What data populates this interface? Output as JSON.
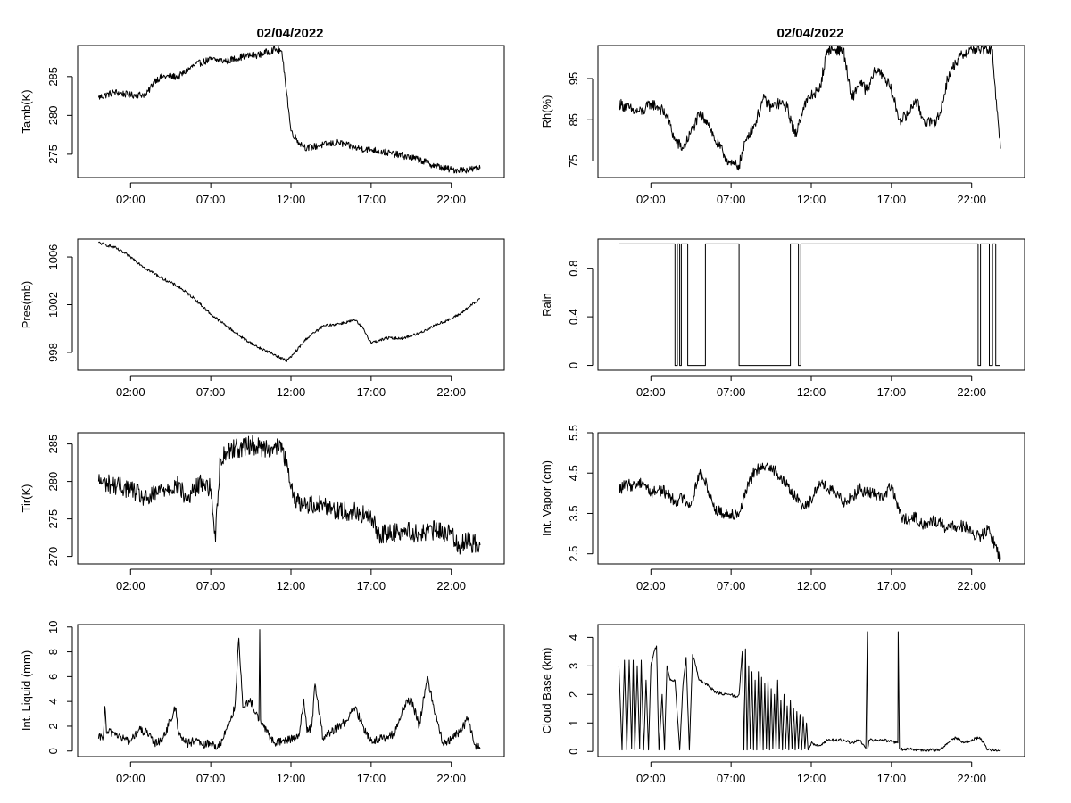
{
  "title_left": "02/04/2022",
  "title_right": "02/04/2022",
  "chart_data": [
    {
      "id": "tamb",
      "type": "line",
      "title": "02/04/2022",
      "xlabel": "",
      "ylabel": "Tamb(K)",
      "ylim": [
        272.0,
        289.0
      ],
      "yticks": [
        275,
        280,
        285
      ],
      "xlim": [
        -1.3,
        25.3
      ],
      "xtick_values": [
        2,
        7,
        12,
        17,
        22
      ],
      "xtick_labels": [
        "02:00",
        "07:00",
        "12:00",
        "17:00",
        "22:00"
      ],
      "x": [
        0,
        1,
        2,
        3,
        3.5,
        4,
        5,
        6,
        7,
        8,
        9,
        10,
        11,
        11.4,
        11.6,
        12,
        12.5,
        13,
        14,
        15,
        16,
        17,
        18,
        19,
        20,
        21,
        22,
        23,
        23.8
      ],
      "values": [
        282.3,
        283.0,
        282.6,
        282.7,
        284.5,
        285.0,
        285.0,
        286.5,
        287.2,
        287.0,
        287.6,
        287.8,
        288.5,
        288.3,
        285.5,
        278.0,
        276.5,
        275.8,
        276.2,
        276.5,
        275.8,
        275.6,
        275.2,
        274.8,
        274.3,
        273.5,
        273.0,
        273.0,
        273.2
      ],
      "noise": 0.45
    },
    {
      "id": "rh",
      "type": "line",
      "title": "02/04/2022",
      "xlabel": "",
      "ylabel": "Rh(%)",
      "ylim": [
        71.0,
        103.0
      ],
      "yticks": [
        75,
        85,
        95
      ],
      "xlim": [
        -1.3,
        25.3
      ],
      "xtick_values": [
        2,
        7,
        12,
        17,
        22
      ],
      "xtick_labels": [
        "02:00",
        "07:00",
        "12:00",
        "17:00",
        "22:00"
      ],
      "x": [
        0,
        0.5,
        1,
        1.5,
        2,
        2.5,
        3,
        3.5,
        4,
        4.5,
        5,
        5.5,
        6,
        6.5,
        7,
        7.5,
        8,
        8.5,
        9,
        9.5,
        10,
        10.5,
        11,
        11.5,
        12,
        12.5,
        13,
        13.5,
        14,
        14.5,
        15,
        15.5,
        16,
        16.5,
        17,
        17.5,
        18,
        18.5,
        19,
        19.5,
        20,
        20.5,
        21,
        21.5,
        22,
        22.5,
        23,
        23.3,
        23.5,
        23.8
      ],
      "values": [
        89,
        88,
        87,
        87,
        89,
        88,
        86,
        80,
        78,
        82,
        86,
        85,
        80,
        77,
        74,
        74,
        81,
        84,
        90,
        88,
        89,
        88,
        81,
        88,
        91,
        92,
        102,
        102,
        102,
        90,
        94,
        92,
        97,
        96,
        92,
        85,
        86,
        90,
        85,
        84,
        86,
        95,
        99,
        101,
        102,
        102,
        102,
        102,
        90,
        78
      ],
      "noise": 1.4
    },
    {
      "id": "pres",
      "type": "line",
      "title": "",
      "xlabel": "",
      "ylabel": "Pres(mb)",
      "ylim": [
        996.5,
        1007.5
      ],
      "yticks": [
        998,
        1002,
        1006
      ],
      "xlim": [
        -1.3,
        25.3
      ],
      "xtick_values": [
        2,
        7,
        12,
        17,
        22
      ],
      "xtick_labels": [
        "02:00",
        "07:00",
        "12:00",
        "17:00",
        "22:00"
      ],
      "x": [
        0,
        1,
        2,
        3,
        4,
        5,
        6,
        7,
        8,
        9,
        10,
        11,
        11.7,
        12,
        13,
        14,
        15,
        16,
        16.5,
        17,
        18,
        19,
        20,
        21,
        22,
        22.5,
        23,
        23.8
      ],
      "values": [
        1007.2,
        1006.8,
        1006.0,
        1005.0,
        1004.2,
        1003.5,
        1002.5,
        1001.2,
        1000.2,
        999.2,
        998.4,
        997.8,
        997.3,
        997.6,
        999.2,
        1000.2,
        1000.4,
        1000.7,
        1000.0,
        998.8,
        999.2,
        999.2,
        999.6,
        1000.3,
        1000.8,
        1001.2,
        1001.7,
        1002.5
      ],
      "noise": 0.12
    },
    {
      "id": "rain",
      "type": "line",
      "title": "",
      "xlabel": "",
      "ylabel": "Rain",
      "ylim": [
        -0.04,
        1.04
      ],
      "yticks": [
        0.0,
        0.4,
        0.8
      ],
      "xlim": [
        -1.3,
        25.3
      ],
      "xtick_values": [
        2,
        7,
        12,
        17,
        22
      ],
      "xtick_labels": [
        "02:00",
        "07:00",
        "12:00",
        "17:00",
        "22:00"
      ],
      "x": [
        0,
        3.5,
        3.5,
        3.65,
        3.65,
        3.8,
        3.8,
        3.9,
        3.9,
        4.3,
        4.3,
        5.4,
        5.4,
        7.5,
        7.5,
        10.7,
        10.7,
        11.2,
        11.2,
        11.35,
        11.35,
        22.4,
        22.4,
        22.55,
        22.55,
        23.1,
        23.1,
        23.3,
        23.3,
        23.5,
        23.5,
        23.8
      ],
      "values": [
        1,
        1,
        0,
        0,
        1,
        1,
        0,
        0,
        1,
        1,
        0,
        0,
        1,
        1,
        0,
        0,
        1,
        1,
        0,
        0,
        1,
        1,
        0,
        0,
        1,
        1,
        0,
        0,
        1,
        1,
        0,
        0
      ],
      "step": true,
      "noise": 0
    },
    {
      "id": "tir",
      "type": "line",
      "title": "",
      "xlabel": "",
      "ylabel": "Tir(K)",
      "ylim": [
        269.0,
        286.5
      ],
      "yticks": [
        270,
        275,
        280,
        285
      ],
      "xlim": [
        -1.3,
        25.3
      ],
      "xtick_values": [
        2,
        7,
        12,
        17,
        22
      ],
      "xtick_labels": [
        "02:00",
        "07:00",
        "12:00",
        "17:00",
        "22:00"
      ],
      "x": [
        0,
        1,
        2,
        3,
        4,
        5,
        5.5,
        6,
        6.5,
        7,
        7.3,
        7.4,
        7.6,
        8,
        8.5,
        9,
        9.5,
        10,
        10.5,
        11,
        11.5,
        12,
        12.5,
        13,
        14,
        15,
        16,
        17,
        17.5,
        18,
        19,
        20,
        21,
        22,
        22.5,
        23,
        23.8
      ],
      "values": [
        280,
        279.5,
        279,
        277.5,
        279,
        279.5,
        277.5,
        279,
        280,
        279,
        272,
        277,
        283,
        284,
        284.5,
        284.5,
        285,
        284.5,
        284.5,
        284.5,
        284.5,
        279,
        277,
        277,
        277,
        276,
        276,
        275,
        273,
        273,
        273.5,
        273,
        273.5,
        273,
        271.5,
        272,
        271.5
      ],
      "noise": 1.3
    },
    {
      "id": "vapor",
      "type": "line",
      "title": "",
      "xlabel": "",
      "ylabel": "Int. Vapor (cm)",
      "ylim": [
        2.25,
        5.5
      ],
      "yticks": [
        2.5,
        3.5,
        4.5,
        5.5
      ],
      "xlim": [
        -1.3,
        25.3
      ],
      "xtick_values": [
        2,
        7,
        12,
        17,
        22
      ],
      "xtick_labels": [
        "02:00",
        "07:00",
        "12:00",
        "17:00",
        "22:00"
      ],
      "x": [
        0,
        0.5,
        1,
        1.5,
        2,
        2.5,
        3,
        3.5,
        4,
        4.5,
        5,
        5.5,
        6,
        6.5,
        7,
        7.5,
        8,
        8.5,
        9,
        9.5,
        10,
        10.5,
        11,
        11.5,
        12,
        12.5,
        13,
        13.5,
        14,
        14.5,
        15,
        15.5,
        16,
        16.5,
        17,
        17.5,
        18,
        18.5,
        19,
        19.5,
        20,
        20.5,
        21,
        21.5,
        22,
        22.5,
        23,
        23.5,
        23.8
      ],
      "values": [
        4.1,
        4.2,
        4.2,
        4.3,
        4.0,
        4.1,
        4.0,
        3.8,
        3.9,
        3.7,
        4.5,
        4.2,
        3.6,
        3.5,
        3.5,
        3.5,
        4.1,
        4.6,
        4.6,
        4.7,
        4.4,
        4.2,
        3.9,
        3.7,
        3.8,
        4.3,
        4.1,
        4.0,
        3.8,
        3.9,
        4.1,
        4.0,
        4.0,
        3.9,
        4.2,
        3.5,
        3.3,
        3.4,
        3.2,
        3.3,
        3.3,
        3.1,
        3.2,
        3.2,
        3.0,
        2.9,
        3.1,
        2.7,
        2.35
      ],
      "noise": 0.15
    },
    {
      "id": "liquid",
      "type": "line",
      "title": "",
      "xlabel": "",
      "ylabel": "Int. Liquid (mm)",
      "ylim": [
        -0.45,
        10.2
      ],
      "yticks": [
        0,
        2,
        4,
        6,
        8,
        10
      ],
      "xlim": [
        -1.3,
        25.3
      ],
      "xtick_values": [
        2,
        7,
        12,
        17,
        22
      ],
      "xtick_labels": [
        "02:00",
        "07:00",
        "12:00",
        "17:00",
        "22:00"
      ],
      "x": [
        0,
        0.3,
        0.4,
        0.5,
        1,
        1.5,
        2,
        2.5,
        3,
        3.5,
        4,
        4.5,
        4.8,
        5,
        5.5,
        6,
        6.5,
        7,
        7.5,
        8,
        8.5,
        8.75,
        9,
        9.5,
        10,
        10.05,
        10.1,
        10.5,
        11,
        11.5,
        12,
        12.5,
        12.8,
        13,
        13.3,
        13.5,
        14,
        14.5,
        15,
        15.5,
        16,
        16.5,
        17,
        17.5,
        18,
        18.5,
        19,
        19.5,
        20,
        20.5,
        21,
        21.5,
        22,
        22.5,
        23,
        23.5,
        23.8
      ],
      "values": [
        1.0,
        1.2,
        3.6,
        1.5,
        1.5,
        1.0,
        0.8,
        1.7,
        1.5,
        0.6,
        1.0,
        2.5,
        3.5,
        1.5,
        0.6,
        0.8,
        0.5,
        0.6,
        0.3,
        1.8,
        3.5,
        9.1,
        3.5,
        4.0,
        2.5,
        9.8,
        2.5,
        1.5,
        0.6,
        0.8,
        1.0,
        1.2,
        4.2,
        1.5,
        2.0,
        5.4,
        1.0,
        1.5,
        2.0,
        2.5,
        3.5,
        2.0,
        0.8,
        1.0,
        1.0,
        1.5,
        3.5,
        4.2,
        2.0,
        6.0,
        3.0,
        0.5,
        1.0,
        1.5,
        2.5,
        0.5,
        0.2
      ],
      "noise": 0.35
    },
    {
      "id": "cloud",
      "type": "line",
      "title": "",
      "xlabel": "",
      "ylabel": "Cloud Base (km)",
      "ylim": [
        -0.18,
        4.45
      ],
      "yticks": [
        0,
        1,
        2,
        3,
        4
      ],
      "xlim": [
        -1.3,
        25.3
      ],
      "xtick_values": [
        2,
        7,
        12,
        17,
        22
      ],
      "xtick_labels": [
        "02:00",
        "07:00",
        "12:00",
        "17:00",
        "22:00"
      ],
      "x": [
        0,
        0.2,
        0.35,
        0.5,
        0.65,
        0.8,
        0.9,
        1.0,
        1.15,
        1.3,
        1.4,
        1.55,
        1.7,
        1.85,
        2.0,
        2.2,
        2.35,
        2.5,
        2.7,
        2.85,
        3.0,
        3.2,
        3.5,
        3.8,
        4.0,
        4.2,
        4.4,
        4.6,
        4.8,
        5.0,
        5.3,
        5.6,
        6.0,
        6.5,
        7.0,
        7.3,
        7.5,
        7.7,
        7.8,
        7.9,
        8.0,
        8.1,
        8.2,
        8.3,
        8.4,
        8.5,
        8.6,
        8.7,
        8.8,
        8.9,
        9.0,
        9.1,
        9.2,
        9.3,
        9.4,
        9.5,
        9.6,
        9.7,
        9.8,
        9.9,
        10.0,
        10.1,
        10.2,
        10.3,
        10.4,
        10.5,
        10.6,
        10.7,
        10.8,
        10.9,
        11.0,
        11.1,
        11.2,
        11.3,
        11.4,
        11.5,
        11.6,
        11.7,
        11.8,
        12.0,
        12.5,
        13.0,
        13.5,
        14.0,
        14.5,
        15.0,
        15.4,
        15.5,
        15.52,
        15.6,
        16.0,
        16.5,
        17.0,
        17.4,
        17.42,
        17.5,
        17.8,
        18.0,
        18.5,
        19.0,
        19.5,
        20.0,
        20.5,
        21.0,
        21.5,
        22.0,
        22.5,
        23.0,
        23.3,
        23.8
      ],
      "values": [
        3.0,
        0.05,
        3.2,
        0.05,
        3.2,
        0.1,
        3.2,
        0.05,
        3.0,
        0.1,
        3.2,
        0.05,
        2.5,
        0.05,
        3.0,
        3.5,
        3.7,
        0.05,
        2.0,
        0.05,
        3.0,
        2.5,
        2.5,
        0.05,
        2.3,
        3.3,
        0.05,
        3.4,
        3.0,
        2.5,
        2.4,
        2.3,
        2.1,
        2.0,
        2.0,
        1.9,
        2.0,
        3.5,
        0.05,
        3.6,
        0.05,
        3.0,
        0.1,
        2.8,
        0.05,
        2.5,
        0.05,
        2.8,
        0.1,
        2.6,
        0.05,
        2.4,
        0.1,
        2.5,
        0.05,
        2.2,
        0.1,
        2.0,
        0.05,
        2.5,
        0.1,
        1.8,
        0.05,
        2.0,
        0.1,
        1.6,
        0.05,
        1.8,
        0.1,
        1.5,
        0.05,
        1.4,
        0.1,
        1.3,
        0.05,
        1.2,
        0.1,
        1.0,
        0.05,
        0.3,
        0.2,
        0.4,
        0.4,
        0.4,
        0.3,
        0.4,
        0.1,
        4.2,
        0.1,
        0.4,
        0.4,
        0.4,
        0.35,
        0.3,
        4.2,
        0.1,
        0.05,
        0.1,
        0.05,
        0.05,
        0.05,
        0.05,
        0.3,
        0.5,
        0.3,
        0.4,
        0.5,
        0.05,
        0.05,
        0.05
      ],
      "noise": 0.05
    }
  ]
}
